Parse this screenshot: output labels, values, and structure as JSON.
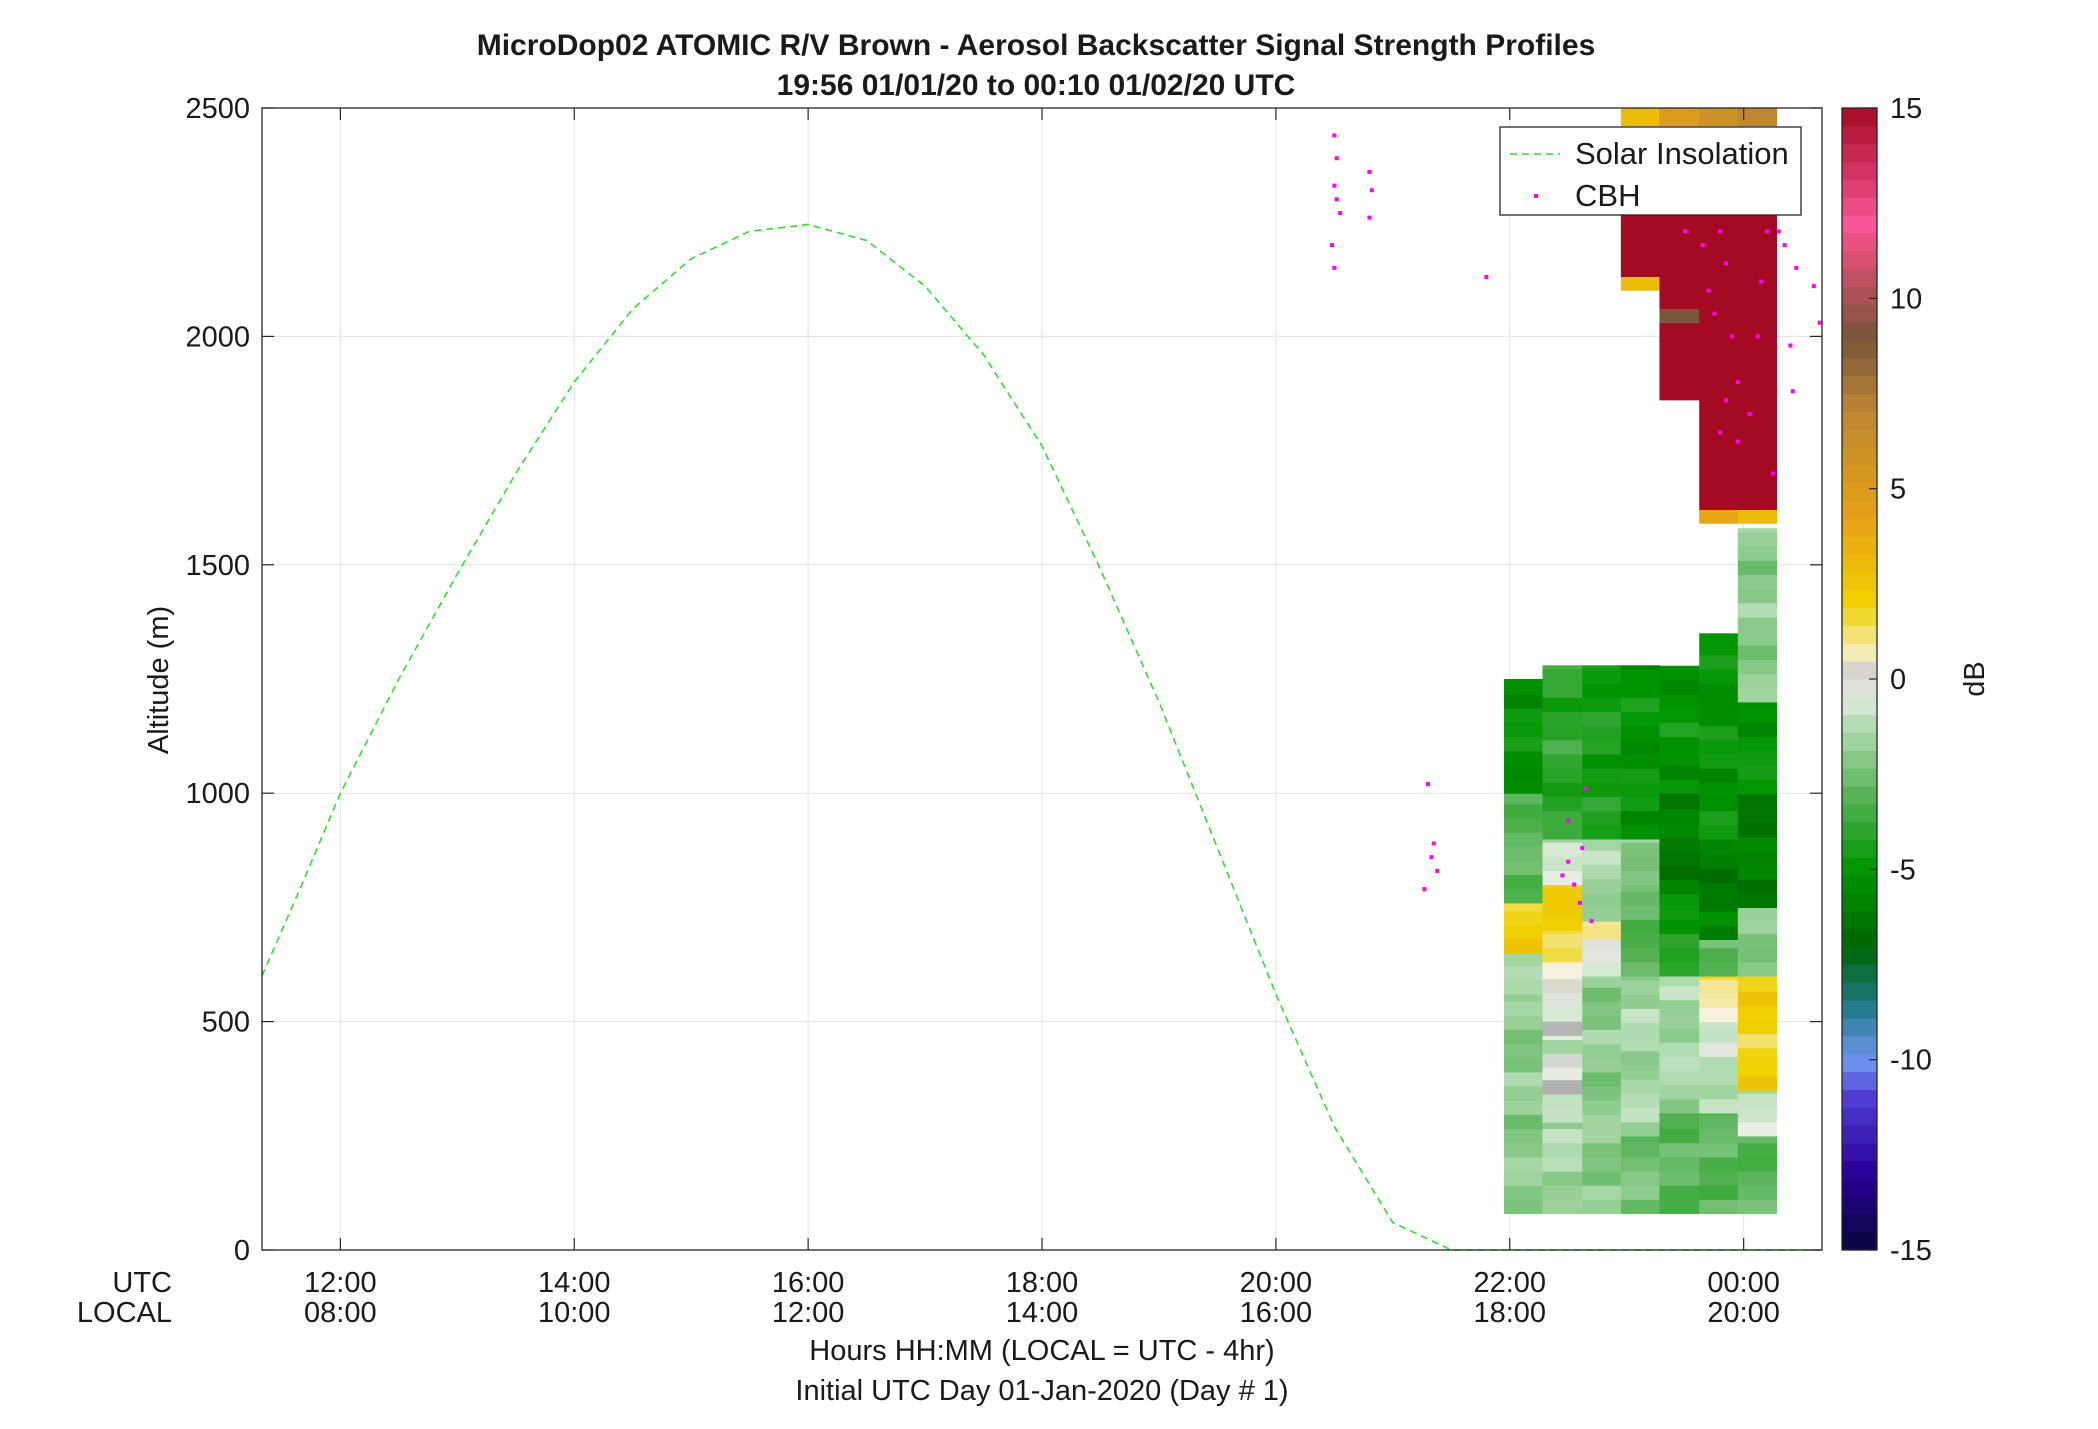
{
  "chart_data": {
    "type": "heatmap",
    "title": "MicroDop02 ATOMIC R/V Brown - Aerosol Backscatter Signal Strength Profiles",
    "subtitle": "19:56 01/01/20 to 00:10 01/02/20  UTC",
    "ylabel": "Altitude (m)",
    "xlabel": "Hours HH:MM  (LOCAL = UTC - 4hr)",
    "xlabel2": "Initial UTC Day 01-Jan-2020 (Day # 1)",
    "ylim": [
      0,
      2500
    ],
    "xlim_hours": [
      11.33,
      24.67
    ],
    "grid": true,
    "y_ticks": [
      0,
      500,
      1000,
      1500,
      2000,
      2500
    ],
    "x_tick_row_labels": [
      "UTC",
      "LOCAL"
    ],
    "x_ticks": [
      {
        "hour": 12,
        "utc": "12:00",
        "local": "08:00"
      },
      {
        "hour": 14,
        "utc": "14:00",
        "local": "10:00"
      },
      {
        "hour": 16,
        "utc": "16:00",
        "local": "12:00"
      },
      {
        "hour": 18,
        "utc": "18:00",
        "local": "14:00"
      },
      {
        "hour": 20,
        "utc": "20:00",
        "local": "16:00"
      },
      {
        "hour": 22,
        "utc": "22:00",
        "local": "18:00"
      },
      {
        "hour": 24,
        "utc": "00:00",
        "local": "20:00"
      }
    ],
    "colorbar": {
      "label": "dB",
      "range": [
        -15,
        15
      ],
      "ticks": [
        -15,
        -10,
        -5,
        0,
        5,
        10,
        15
      ]
    },
    "legend": {
      "placement": "top-right",
      "entries": [
        "Solar Insolation",
        "CBH"
      ]
    },
    "colors": {
      "solar": "#33dd33",
      "cbh": "#ff00ff",
      "grid": "#e3e3e3"
    },
    "solar_insolation": {
      "x_hours": [
        11.33,
        11.67,
        12.0,
        12.5,
        13.0,
        13.5,
        14.0,
        14.5,
        15.0,
        15.5,
        16.0,
        16.5,
        17.0,
        17.5,
        18.0,
        18.5,
        19.0,
        19.5,
        20.0,
        20.5,
        21.0,
        21.5,
        21.6,
        22.0,
        24.67
      ],
      "y_m": [
        600,
        800,
        1000,
        1250,
        1480,
        1700,
        1900,
        2060,
        2170,
        2230,
        2245,
        2210,
        2110,
        1960,
        1760,
        1490,
        1200,
        880,
        560,
        270,
        60,
        0,
        0,
        0,
        0
      ]
    },
    "backscatter_columns": [
      {
        "t_hours": [
          21.95,
          22.28
        ],
        "bins": [
          [
            80,
            560,
            -2
          ],
          [
            560,
            650,
            -1
          ],
          [
            650,
            760,
            2
          ],
          [
            760,
            1000,
            -3
          ],
          [
            1000,
            1250,
            -5
          ]
        ]
      },
      {
        "t_hours": [
          22.28,
          22.62
        ],
        "bins": [
          [
            80,
            280,
            -1.5
          ],
          [
            280,
            400,
            -0.5
          ],
          [
            400,
            430,
            0
          ],
          [
            430,
            470,
            -1
          ],
          [
            470,
            600,
            0
          ],
          [
            600,
            700,
            1
          ],
          [
            700,
            800,
            2
          ],
          [
            800,
            900,
            -1
          ],
          [
            900,
            1280,
            -4
          ]
        ]
      },
      {
        "t_hours": [
          22.62,
          22.95
        ],
        "bins": [
          [
            80,
            600,
            -2
          ],
          [
            600,
            680,
            0
          ],
          [
            680,
            720,
            1
          ],
          [
            720,
            900,
            -1.5
          ],
          [
            900,
            1280,
            -4.5
          ]
        ]
      },
      {
        "t_hours": [
          22.95,
          23.28
        ],
        "bins": [
          [
            80,
            250,
            -2.5
          ],
          [
            250,
            600,
            -1.5
          ],
          [
            600,
            800,
            -3
          ],
          [
            800,
            900,
            -2
          ],
          [
            900,
            1280,
            -5
          ]
        ],
        "high": [
          [
            2100,
            2130,
            3
          ],
          [
            2130,
            2280,
            15
          ],
          [
            2460,
            2500,
            3
          ]
        ]
      },
      {
        "t_hours": [
          23.28,
          23.62
        ],
        "bins": [
          [
            80,
            300,
            -3
          ],
          [
            300,
            600,
            -1.5
          ],
          [
            600,
            780,
            -4.5
          ],
          [
            780,
            1000,
            -6
          ],
          [
            1000,
            1280,
            -5
          ]
        ],
        "high": [
          [
            1860,
            2030,
            15
          ],
          [
            2030,
            2060,
            9
          ],
          [
            2060,
            2280,
            15
          ],
          [
            2460,
            2500,
            5
          ]
        ]
      },
      {
        "t_hours": [
          23.62,
          23.95
        ],
        "bins": [
          [
            80,
            300,
            -3
          ],
          [
            300,
            500,
            -1
          ],
          [
            500,
            600,
            1
          ],
          [
            600,
            680,
            -3
          ],
          [
            680,
            900,
            -6
          ],
          [
            900,
            1350,
            -5
          ]
        ],
        "high": [
          [
            1590,
            1620,
            4
          ],
          [
            1620,
            2280,
            15
          ],
          [
            2460,
            2500,
            6
          ]
        ]
      },
      {
        "t_hours": [
          23.95,
          24.28
        ],
        "bins": [
          [
            80,
            250,
            -3
          ],
          [
            250,
            350,
            -1
          ],
          [
            350,
            600,
            2
          ],
          [
            600,
            750,
            -2
          ],
          [
            750,
            1000,
            -6
          ],
          [
            1000,
            1200,
            -5
          ],
          [
            1200,
            1580,
            -2
          ]
        ],
        "high": [
          [
            1590,
            1620,
            3
          ],
          [
            1620,
            2280,
            15
          ],
          [
            2460,
            2500,
            7
          ]
        ]
      }
    ],
    "cbh_points": [
      [
        20.5,
        2440
      ],
      [
        20.52,
        2390
      ],
      [
        20.5,
        2330
      ],
      [
        20.52,
        2300
      ],
      [
        20.55,
        2270
      ],
      [
        20.48,
        2200
      ],
      [
        20.5,
        2150
      ],
      [
        20.8,
        2360
      ],
      [
        20.82,
        2320
      ],
      [
        20.8,
        2260
      ],
      [
        21.3,
        1020
      ],
      [
        21.35,
        890
      ],
      [
        21.33,
        860
      ],
      [
        21.38,
        830
      ],
      [
        21.27,
        790
      ],
      [
        22.45,
        820
      ],
      [
        22.5,
        850
      ],
      [
        22.55,
        800
      ],
      [
        22.6,
        760
      ],
      [
        22.5,
        940
      ],
      [
        22.65,
        1010
      ],
      [
        22.62,
        880
      ],
      [
        22.7,
        720
      ],
      [
        21.8,
        2130
      ],
      [
        23.5,
        2230
      ],
      [
        23.65,
        2200
      ],
      [
        23.8,
        2230
      ],
      [
        23.85,
        2160
      ],
      [
        23.7,
        2100
      ],
      [
        23.75,
        2050
      ],
      [
        23.9,
        2000
      ],
      [
        23.95,
        1900
      ],
      [
        23.85,
        1860
      ],
      [
        23.8,
        1790
      ],
      [
        23.95,
        1770
      ],
      [
        24.05,
        1830
      ],
      [
        24.12,
        2000
      ],
      [
        24.15,
        2120
      ],
      [
        24.2,
        2230
      ],
      [
        24.3,
        2230
      ],
      [
        24.35,
        2200
      ],
      [
        24.45,
        2150
      ],
      [
        24.4,
        1980
      ],
      [
        24.42,
        1880
      ],
      [
        24.6,
        2110
      ],
      [
        24.65,
        2030
      ],
      [
        24.25,
        1700
      ]
    ]
  }
}
